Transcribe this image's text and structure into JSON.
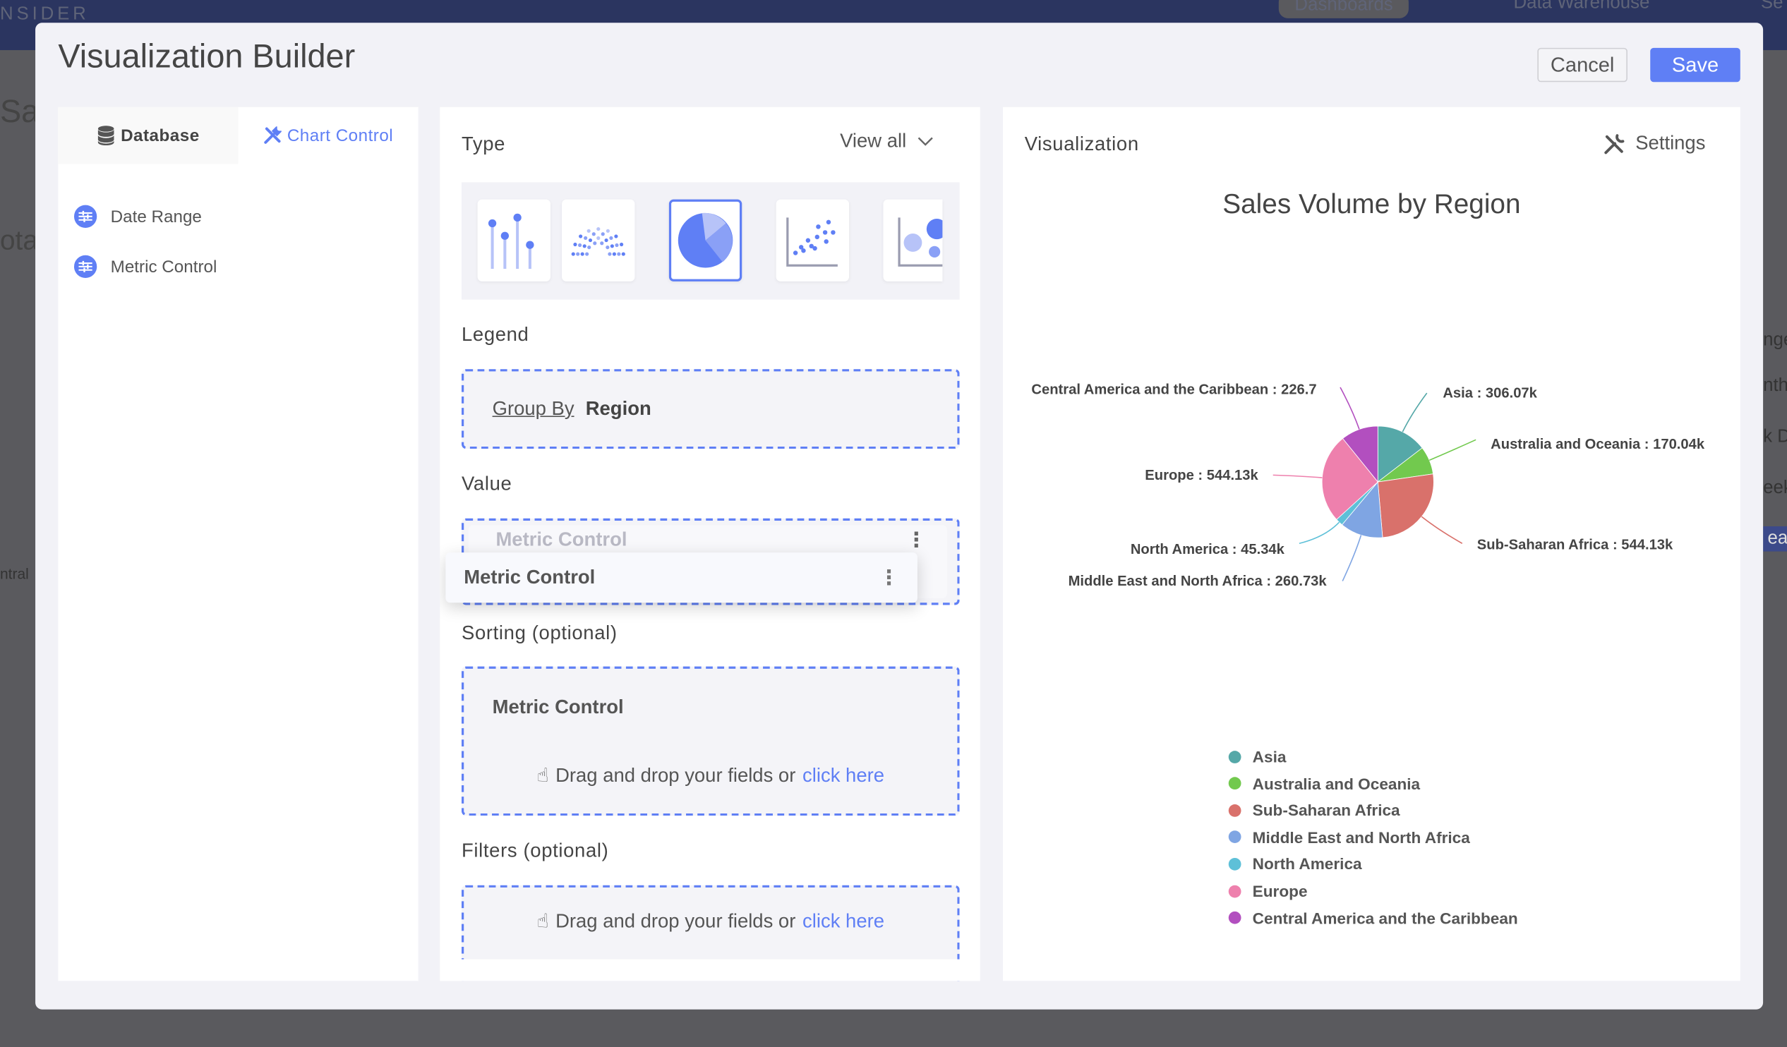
{
  "background": {
    "brand": "NSIDER",
    "nav": [
      "Dashboards",
      "Data Warehouse",
      "Se"
    ],
    "left_fragments": [
      "Sal",
      "ota",
      "ntral"
    ],
    "right_fragments": [
      "nge",
      "nth",
      "k D",
      "eek",
      "ear"
    ]
  },
  "modal": {
    "title": "Visualization Builder",
    "cancel_label": "Cancel",
    "save_label": "Save"
  },
  "left_panel": {
    "tabs": [
      {
        "label": "Database",
        "icon": "database-icon",
        "active": false
      },
      {
        "label": "Chart Control",
        "icon": "tools-icon",
        "active": true
      }
    ],
    "items": [
      {
        "label": "Date Range",
        "icon": "sliders-icon"
      },
      {
        "label": "Metric Control",
        "icon": "sliders-icon"
      }
    ]
  },
  "middle_panel": {
    "type_label": "Type",
    "view_all_label": "View all",
    "chart_types": [
      {
        "icon": "lollipop-chart-icon",
        "selected": false
      },
      {
        "icon": "parliament-chart-icon",
        "selected": false
      },
      {
        "icon": "pie-chart-icon",
        "selected": true
      },
      {
        "icon": "scatter-chart-icon",
        "selected": false
      },
      {
        "icon": "bubble-chart-icon",
        "selected": false
      }
    ],
    "legend_label": "Legend",
    "legend_group_by": "Group By",
    "legend_field": "Region",
    "value_label": "Value",
    "value_field_ghost": "Metric Control",
    "value_field_dragging": "Metric Control",
    "sorting_label": "Sorting (optional)",
    "sorting_field": "Metric Control",
    "drag_text": "Drag and drop your fields or",
    "click_here": "click here",
    "filters_label": "Filters (optional)"
  },
  "right_panel": {
    "title": "Visualization",
    "settings_label": "Settings"
  },
  "colors": {
    "accent": "#5f7ff5",
    "topbar": "#2b3560"
  },
  "chart_data": {
    "type": "pie",
    "title": "Sales Volume by Region",
    "legend_position": "bottom",
    "value_unit": "k",
    "slices": [
      {
        "name": "Asia",
        "value": 306.07,
        "label": "Asia : 306.07k",
        "color": "#55a8a8"
      },
      {
        "name": "Australia and Oceania",
        "value": 170.04,
        "label": "Australia and Oceania : 170.04k",
        "color": "#72c94e"
      },
      {
        "name": "Sub-Saharan Africa",
        "value": 544.13,
        "label": "Sub-Saharan Africa : 544.13k",
        "color": "#d9716b"
      },
      {
        "name": "Middle East and North Africa",
        "value": 260.73,
        "label": "Middle East and North Africa : 260.73k",
        "color": "#7fa5e3"
      },
      {
        "name": "North America",
        "value": 45.34,
        "label": "North America : 45.34k",
        "color": "#5ec0d8"
      },
      {
        "name": "Europe",
        "value": 544.13,
        "label": "Europe : 544.13k",
        "color": "#ee80ad"
      },
      {
        "name": "Central America and the Caribbean",
        "value": 226.7,
        "label": "Central America and the Caribbean : 226.7",
        "color": "#b24fbf"
      }
    ]
  }
}
